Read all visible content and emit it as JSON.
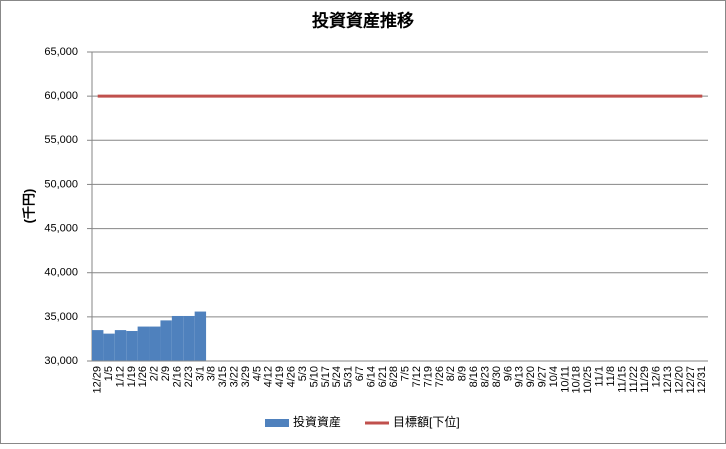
{
  "chart_data": {
    "type": "bar",
    "title": "投資資産推移",
    "y_label": "(千円)",
    "categories": [
      "12/29",
      "1/5",
      "1/12",
      "1/19",
      "1/26",
      "2/2",
      "2/9",
      "2/16",
      "2/23",
      "3/1",
      "3/8",
      "3/15",
      "3/22",
      "3/29",
      "4/5",
      "4/12",
      "4/19",
      "4/26",
      "5/3",
      "5/10",
      "5/17",
      "5/24",
      "5/31",
      "6/7",
      "6/14",
      "6/21",
      "6/28",
      "7/5",
      "7/12",
      "7/19",
      "7/26",
      "8/2",
      "8/9",
      "8/16",
      "8/23",
      "8/30",
      "9/6",
      "9/13",
      "9/20",
      "9/27",
      "10/4",
      "10/11",
      "10/18",
      "10/25",
      "11/1",
      "11/8",
      "11/15",
      "11/22",
      "11/29",
      "12/6",
      "12/13",
      "12/20",
      "12/27",
      "12/31"
    ],
    "series": [
      {
        "name": "投資資産",
        "kind": "bar",
        "color": "#4f81bd",
        "values": [
          33500,
          33100,
          33500,
          33400,
          33900,
          33900,
          34600,
          35100,
          35100,
          35600,
          null,
          null,
          null,
          null,
          null,
          null,
          null,
          null,
          null,
          null,
          null,
          null,
          null,
          null,
          null,
          null,
          null,
          null,
          null,
          null,
          null,
          null,
          null,
          null,
          null,
          null,
          null,
          null,
          null,
          null,
          null,
          null,
          null,
          null,
          null,
          null,
          null,
          null,
          null,
          null,
          null,
          null,
          null,
          null
        ]
      },
      {
        "name": "目標額[下位]",
        "kind": "line",
        "color": "#c0504d",
        "values": [
          60000,
          60000,
          60000,
          60000,
          60000,
          60000,
          60000,
          60000,
          60000,
          60000,
          60000,
          60000,
          60000,
          60000,
          60000,
          60000,
          60000,
          60000,
          60000,
          60000,
          60000,
          60000,
          60000,
          60000,
          60000,
          60000,
          60000,
          60000,
          60000,
          60000,
          60000,
          60000,
          60000,
          60000,
          60000,
          60000,
          60000,
          60000,
          60000,
          60000,
          60000,
          60000,
          60000,
          60000,
          60000,
          60000,
          60000,
          60000,
          60000,
          60000,
          60000,
          60000,
          60000,
          60000
        ]
      }
    ],
    "ylim": [
      30000,
      65000
    ],
    "yticks": [
      {
        "value": 30000,
        "label": "30,000"
      },
      {
        "value": 35000,
        "label": "35,000"
      },
      {
        "value": 40000,
        "label": "40,000"
      },
      {
        "value": 45000,
        "label": "45,000"
      },
      {
        "value": 50000,
        "label": "50,000"
      },
      {
        "value": 55000,
        "label": "55,000"
      },
      {
        "value": 60000,
        "label": "60,000"
      },
      {
        "value": 65000,
        "label": "65,000"
      }
    ],
    "grid": true,
    "legend": "bottom"
  }
}
